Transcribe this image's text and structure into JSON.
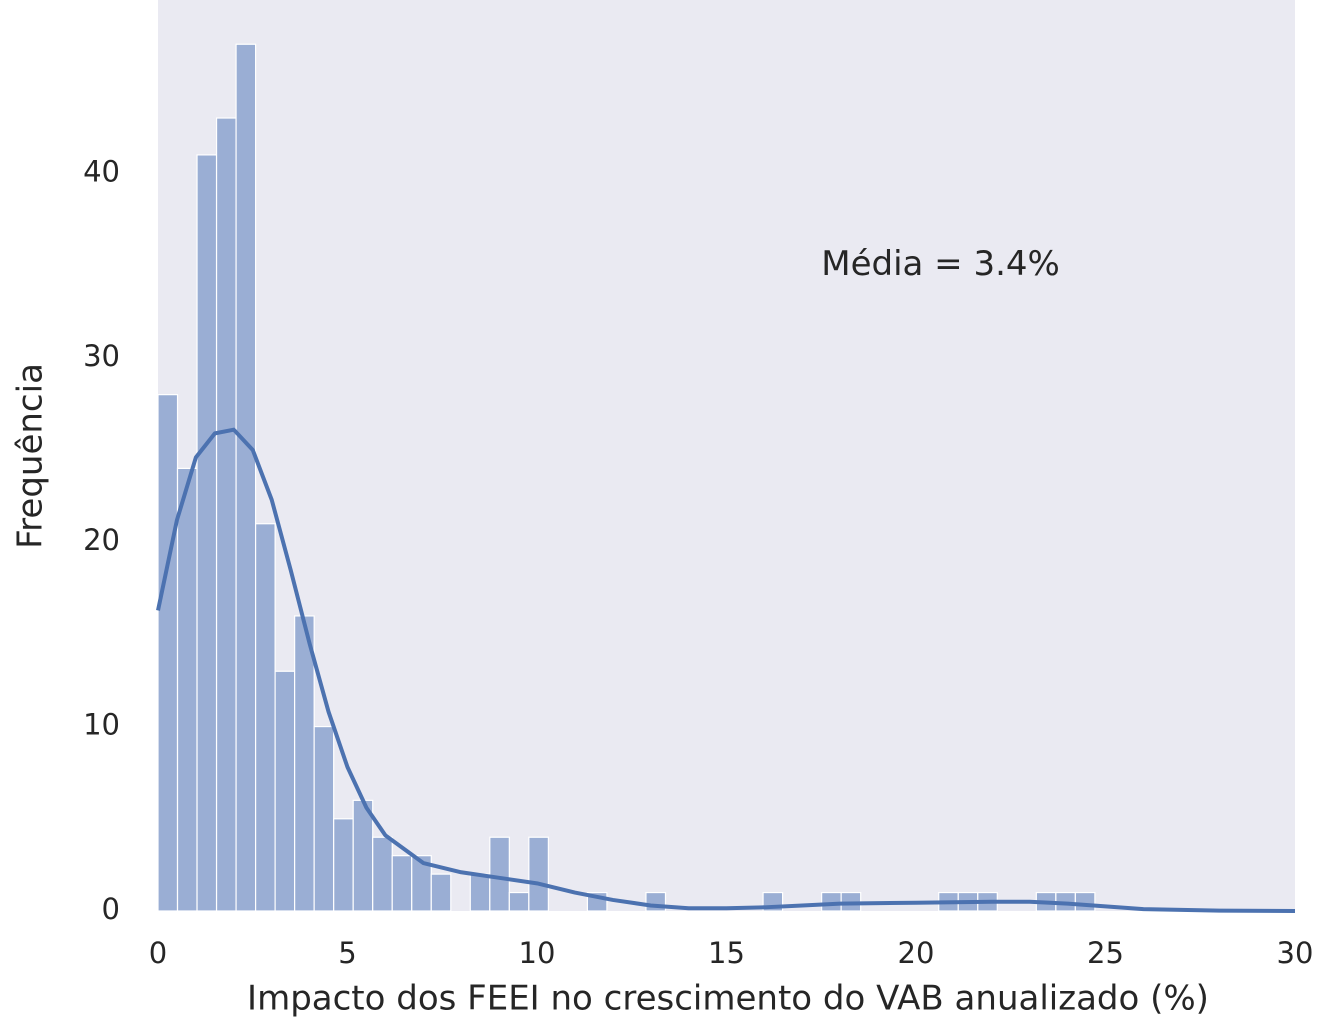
{
  "chart_data": {
    "type": "histogram",
    "xlabel": "Impacto dos FEEI no crescimento do VAB anualizado (%)",
    "ylabel": "Frequência",
    "annotation": {
      "text": "Média = 3.4%",
      "x": 17.5,
      "y": 35
    },
    "bins": [
      0,
      0.515,
      1.03,
      1.545,
      2.06,
      2.575,
      3.09,
      3.605,
      4.12,
      4.635,
      5.15,
      5.665,
      6.18,
      6.695,
      7.21,
      7.725,
      8.24,
      8.755,
      9.27,
      9.785,
      10.3,
      10.815,
      11.33,
      11.845,
      12.36,
      12.875,
      13.39,
      13.905,
      14.42,
      14.935,
      15.45,
      15.965,
      16.48,
      16.995,
      17.51,
      18.025,
      18.54,
      19.055,
      19.57,
      20.085,
      20.6,
      21.115,
      21.63,
      22.145,
      22.66,
      23.175,
      23.69,
      24.205,
      24.72
    ],
    "counts": [
      28,
      24,
      41,
      43,
      47,
      21,
      13,
      16,
      10,
      5,
      6,
      4,
      3,
      3,
      2,
      0,
      2,
      4,
      1,
      4,
      0,
      0,
      1,
      0,
      0,
      1,
      0,
      0,
      0,
      0,
      0,
      1,
      0,
      0,
      1,
      1,
      0,
      0,
      0,
      0,
      1,
      1,
      1,
      0,
      0,
      1,
      1,
      1
    ],
    "color": "#9aaed4",
    "kde": {
      "color": "#4c72b0",
      "x": [
        0,
        0.5,
        1,
        1.5,
        2,
        2.5,
        3,
        3.5,
        4,
        4.5,
        5,
        5.5,
        6,
        7,
        8,
        9,
        10,
        11,
        12,
        13,
        14,
        15,
        16,
        17,
        18,
        20,
        22,
        23,
        24,
        25,
        26,
        28,
        30
      ],
      "y": [
        16.3,
        21.2,
        24.6,
        25.9,
        26.1,
        25.0,
        22.3,
        18.5,
        14.5,
        10.8,
        7.8,
        5.6,
        4.1,
        2.6,
        2.1,
        1.8,
        1.5,
        1.0,
        0.6,
        0.3,
        0.15,
        0.15,
        0.2,
        0.3,
        0.4,
        0.45,
        0.5,
        0.5,
        0.4,
        0.25,
        0.1,
        0.02,
        0
      ]
    },
    "xlim": [
      0,
      30
    ],
    "ylim": [
      0,
      49.4
    ],
    "xticks": [
      0,
      5,
      10,
      15,
      20,
      25,
      30
    ],
    "yticks": [
      0,
      10,
      20,
      30,
      40
    ],
    "background": "#eaeaf2",
    "grid": false
  }
}
